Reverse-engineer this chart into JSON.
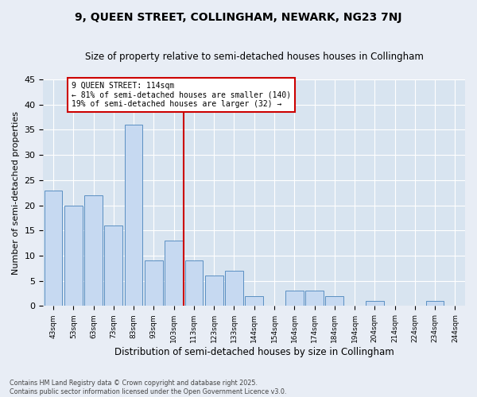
{
  "title": "9, QUEEN STREET, COLLINGHAM, NEWARK, NG23 7NJ",
  "subtitle": "Size of property relative to semi-detached houses houses in Collingham",
  "xlabel": "Distribution of semi-detached houses by size in Collingham",
  "ylabel": "Number of semi-detached properties",
  "bin_labels": [
    "43sqm",
    "53sqm",
    "63sqm",
    "73sqm",
    "83sqm",
    "93sqm",
    "103sqm",
    "113sqm",
    "123sqm",
    "133sqm",
    "144sqm",
    "154sqm",
    "164sqm",
    "174sqm",
    "184sqm",
    "194sqm",
    "204sqm",
    "214sqm",
    "224sqm",
    "234sqm",
    "244sqm"
  ],
  "counts": [
    23,
    20,
    22,
    16,
    36,
    9,
    13,
    9,
    6,
    7,
    2,
    0,
    3,
    3,
    2,
    0,
    1,
    0,
    0,
    1,
    0
  ],
  "bar_color": "#c6d9f1",
  "bar_edge_color": "#5a8fc2",
  "ref_bin_index": 7,
  "reference_line_label": "9 QUEEN STREET: 114sqm",
  "annotation_line1": "← 81% of semi-detached houses are smaller (140)",
  "annotation_line2": "19% of semi-detached houses are larger (32) →",
  "annotation_box_color": "white",
  "annotation_box_edge_color": "#cc0000",
  "vline_color": "#cc0000",
  "ylim": [
    0,
    45
  ],
  "yticks": [
    0,
    5,
    10,
    15,
    20,
    25,
    30,
    35,
    40,
    45
  ],
  "bg_color": "#e8edf5",
  "plot_bg_color": "#d8e4f0",
  "grid_color": "white",
  "footnote1": "Contains HM Land Registry data © Crown copyright and database right 2025.",
  "footnote2": "Contains public sector information licensed under the Open Government Licence v3.0.",
  "title_fontsize": 10,
  "subtitle_fontsize": 8.5,
  "xlabel_fontsize": 8.5,
  "ylabel_fontsize": 8
}
